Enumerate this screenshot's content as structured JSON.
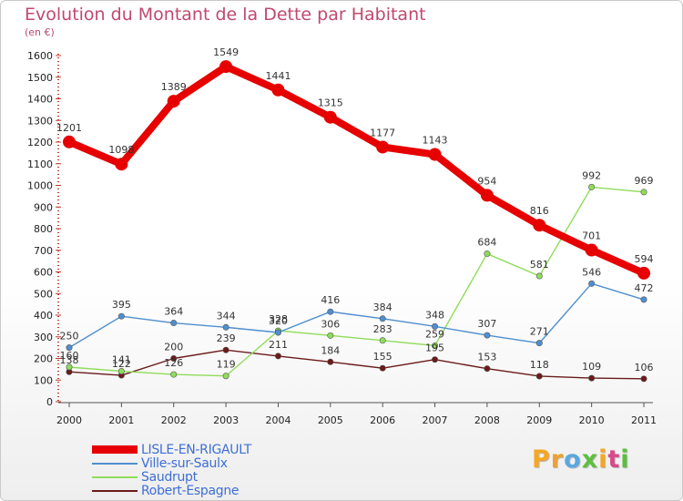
{
  "header": {
    "title": "Evolution du Montant de la Dette par Habitant",
    "subtitle": "(en €)"
  },
  "logo": {
    "text": "Proxiti",
    "letter_colors": [
      "#f5a623",
      "#f0a030",
      "#5aa8e0",
      "#5cbf3f",
      "#f5a623",
      "#d84a8a",
      "#5cbf3f"
    ]
  },
  "chart_data": {
    "type": "line",
    "title": "Evolution du Montant de la Dette par Habitant",
    "subtitle": "(en €)",
    "xlabel": "",
    "ylabel": "",
    "categories": [
      "2000",
      "2001",
      "2002",
      "2003",
      "2004",
      "2005",
      "2006",
      "2007",
      "2008",
      "2009",
      "2010",
      "2011"
    ],
    "ylim": [
      0,
      1600
    ],
    "yticks": [
      0,
      100,
      200,
      300,
      400,
      500,
      600,
      700,
      800,
      900,
      1000,
      1100,
      1200,
      1300,
      1400,
      1500,
      1600
    ],
    "grid": false,
    "legend_position": "bottom-left",
    "series": [
      {
        "name": "LISLE-EN-RIGAULT",
        "color": "#e60000",
        "thick": true,
        "values": [
          1201,
          1098,
          1389,
          1549,
          1441,
          1315,
          1177,
          1143,
          954,
          816,
          701,
          594
        ]
      },
      {
        "name": "Ville-sur-Saulx",
        "color": "#4f8fcf",
        "thick": false,
        "values": [
          250,
          395,
          364,
          344,
          320,
          416,
          384,
          348,
          307,
          271,
          546,
          472
        ]
      },
      {
        "name": "Saudrupt",
        "color": "#8fdc5a",
        "thick": false,
        "values": [
          160,
          141,
          126,
          119,
          328,
          306,
          283,
          259,
          684,
          581,
          992,
          969
        ]
      },
      {
        "name": "Robert-Espagne",
        "color": "#6b1a1a",
        "thick": false,
        "values": [
          138,
          122,
          200,
          239,
          211,
          184,
          155,
          195,
          153,
          118,
          109,
          106
        ]
      }
    ]
  }
}
